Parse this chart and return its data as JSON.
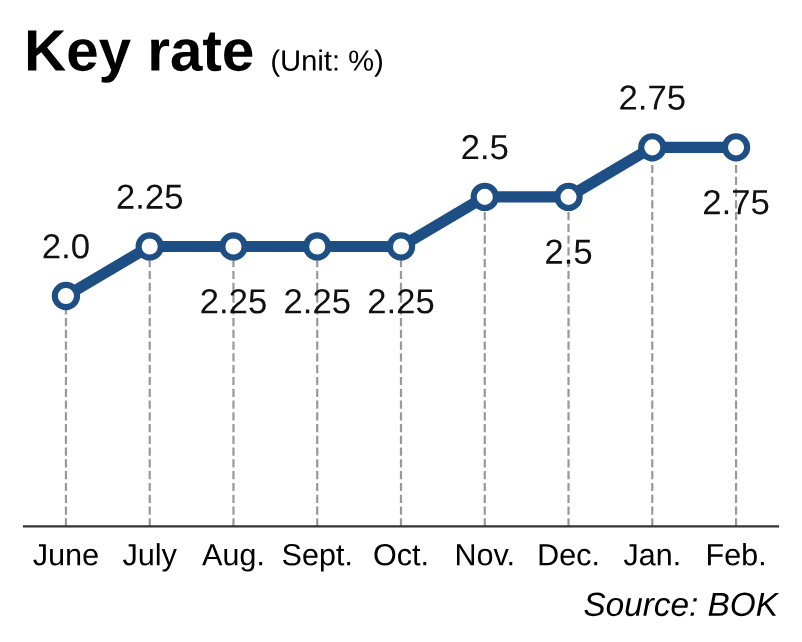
{
  "chart_data": {
    "type": "line",
    "title": "Key rate",
    "subtitle": "(Unit: %)",
    "categories": [
      "June",
      "July",
      "Aug.",
      "Sept.",
      "Oct.",
      "Nov.",
      "Dec.",
      "Jan.",
      "Feb."
    ],
    "series": [
      {
        "color": "#1d4f85",
        "values": [
          2.0,
          2.25,
          2.25,
          2.25,
          2.25,
          2.5,
          2.5,
          2.75,
          2.75
        ],
        "value_labels": [
          "2.0",
          "2.25",
          "2.25",
          "2.25",
          "2.25",
          "2.5",
          "2.5",
          "2.75",
          "2.75"
        ]
      }
    ],
    "marker": "circle",
    "line_style": "solid",
    "grid": "x",
    "annotations": [
      "Source: BOK"
    ]
  }
}
